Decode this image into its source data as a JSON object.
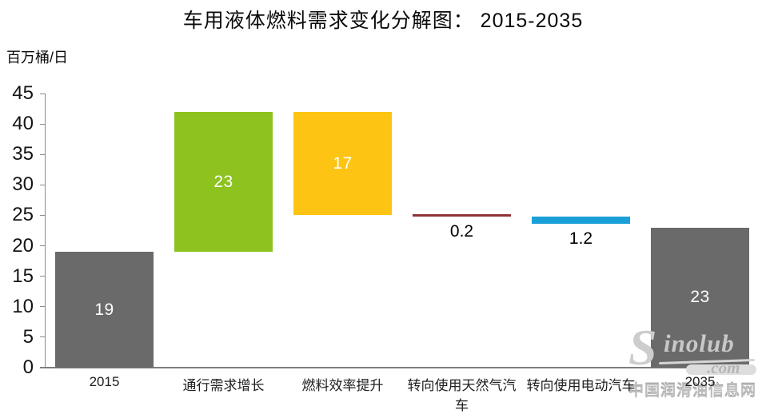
{
  "chart_data": {
    "type": "waterfall",
    "title": "车用液体燃料需求变化分解图： 2015-2035",
    "unit_label": "百万桶/日",
    "ylim": [
      0,
      45
    ],
    "ytick_step": 5,
    "yticks": [
      0,
      5,
      10,
      15,
      20,
      25,
      30,
      35,
      40,
      45
    ],
    "grid": false,
    "legend_position": "none",
    "categories": [
      "2015",
      "通行需求增长",
      "燃料效率提升",
      "转向使用天然气汽车",
      "转向使用电动汽车",
      "2035"
    ],
    "steps": [
      {
        "category": "2015",
        "role": "total",
        "value": 19,
        "label": "19",
        "color": "#6A6A6A",
        "label_position": "inside",
        "label_color": "#FFFFFF"
      },
      {
        "category": "通行需求增长",
        "role": "increase",
        "value": 23,
        "label": "23",
        "color": "#8DC21F",
        "label_position": "inside",
        "label_color": "#FFFFFF"
      },
      {
        "category": "燃料效率提升",
        "role": "decrease",
        "value": 17,
        "label": "17",
        "color": "#FDC413",
        "label_position": "inside",
        "label_color": "#FFFFFF"
      },
      {
        "category": "转向使用天然气汽车",
        "role": "decrease",
        "value": 0.2,
        "label": "0.2",
        "color": "#8E3338",
        "label_position": "below",
        "label_color": "#000000"
      },
      {
        "category": "转向使用电动汽车",
        "role": "decrease",
        "value": 1.2,
        "label": "1.2",
        "color": "#19A0D9",
        "label_position": "below",
        "label_color": "#000000"
      },
      {
        "category": "2035",
        "role": "total",
        "value": 23,
        "label": "23",
        "color": "#6A6A6A",
        "label_position": "inside",
        "label_color": "#FFFFFF"
      }
    ],
    "axis_color": "#8C8C8C",
    "text_color": "#141414"
  },
  "watermark": {
    "logo_initial": "S",
    "logo_rest": "inolub",
    "domain": ".com",
    "site_name": "中国润滑油信息网",
    "color": "#BDBDBD"
  }
}
